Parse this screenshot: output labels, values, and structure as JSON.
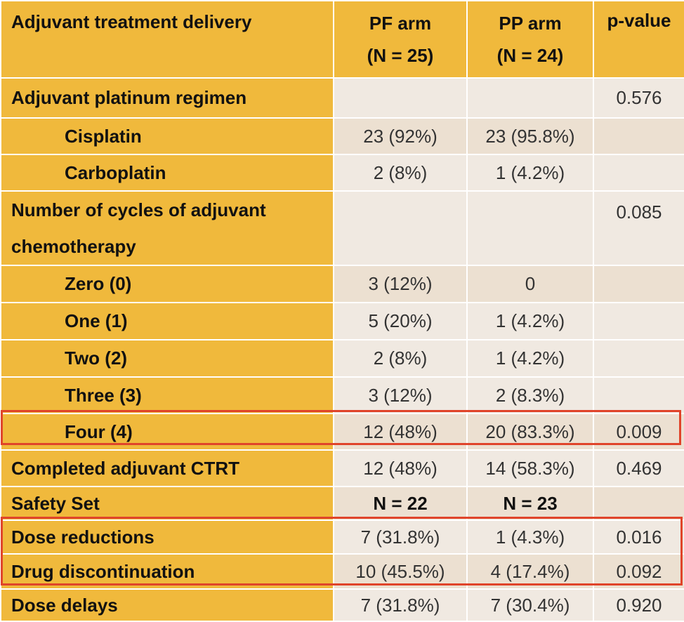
{
  "header": {
    "col1": "Adjuvant treatment delivery",
    "col2_line1": "PF arm",
    "col2_line2": "(N = 25)",
    "col3_line1": "PP arm",
    "col3_line2": "(N = 24)",
    "col4": "p-value"
  },
  "rows": [
    {
      "label": "Adjuvant platinum regimen",
      "pf": "",
      "pp": "",
      "p": "0.576"
    },
    {
      "label": "Cisplatin",
      "pf": "23 (92%)",
      "pp": "23 (95.8%)",
      "p": ""
    },
    {
      "label": "Carboplatin",
      "pf": "2 (8%)",
      "pp": "1 (4.2%)",
      "p": ""
    },
    {
      "label_line1": "Number of cycles of adjuvant",
      "label_line2": "chemotherapy",
      "pf": "",
      "pp": "",
      "p": "0.085"
    },
    {
      "label": "Zero (0)",
      "pf": "3 (12%)",
      "pp": "0",
      "p": ""
    },
    {
      "label": "One (1)",
      "pf": "5 (20%)",
      "pp": "1 (4.2%)",
      "p": ""
    },
    {
      "label": "Two (2)",
      "pf": "2 (8%)",
      "pp": "1 (4.2%)",
      "p": ""
    },
    {
      "label": "Three (3)",
      "pf": "3 (12%)",
      "pp": "2  (8.3%)",
      "p": ""
    },
    {
      "label": "Four (4)",
      "pf": "12 (48%)",
      "pp": "20 (83.3%)",
      "p": "0.009"
    },
    {
      "label": "Completed adjuvant CTRT",
      "pf": "12 (48%)",
      "pp": "14 (58.3%)",
      "p": "0.469"
    },
    {
      "label": "Safety Set",
      "pf": "N = 22",
      "pp": "N = 23",
      "p": ""
    },
    {
      "label": "Dose reductions",
      "pf": "7 (31.8%)",
      "pp": "1 (4.3%)",
      "p": "0.016"
    },
    {
      "label": "Drug discontinuation",
      "pf": "10 (45.5%)",
      "pp": "4 (17.4%)",
      "p": "0.092"
    },
    {
      "label": "Dose delays",
      "pf": "7 (31.8%)",
      "pp": "7 (30.4%)",
      "p": "0.920"
    }
  ],
  "colors": {
    "header_bg": "#f0b93c",
    "cell_light": "#f0e9e1",
    "cell_dark": "#ece0d1",
    "highlight": "#e0442a"
  }
}
